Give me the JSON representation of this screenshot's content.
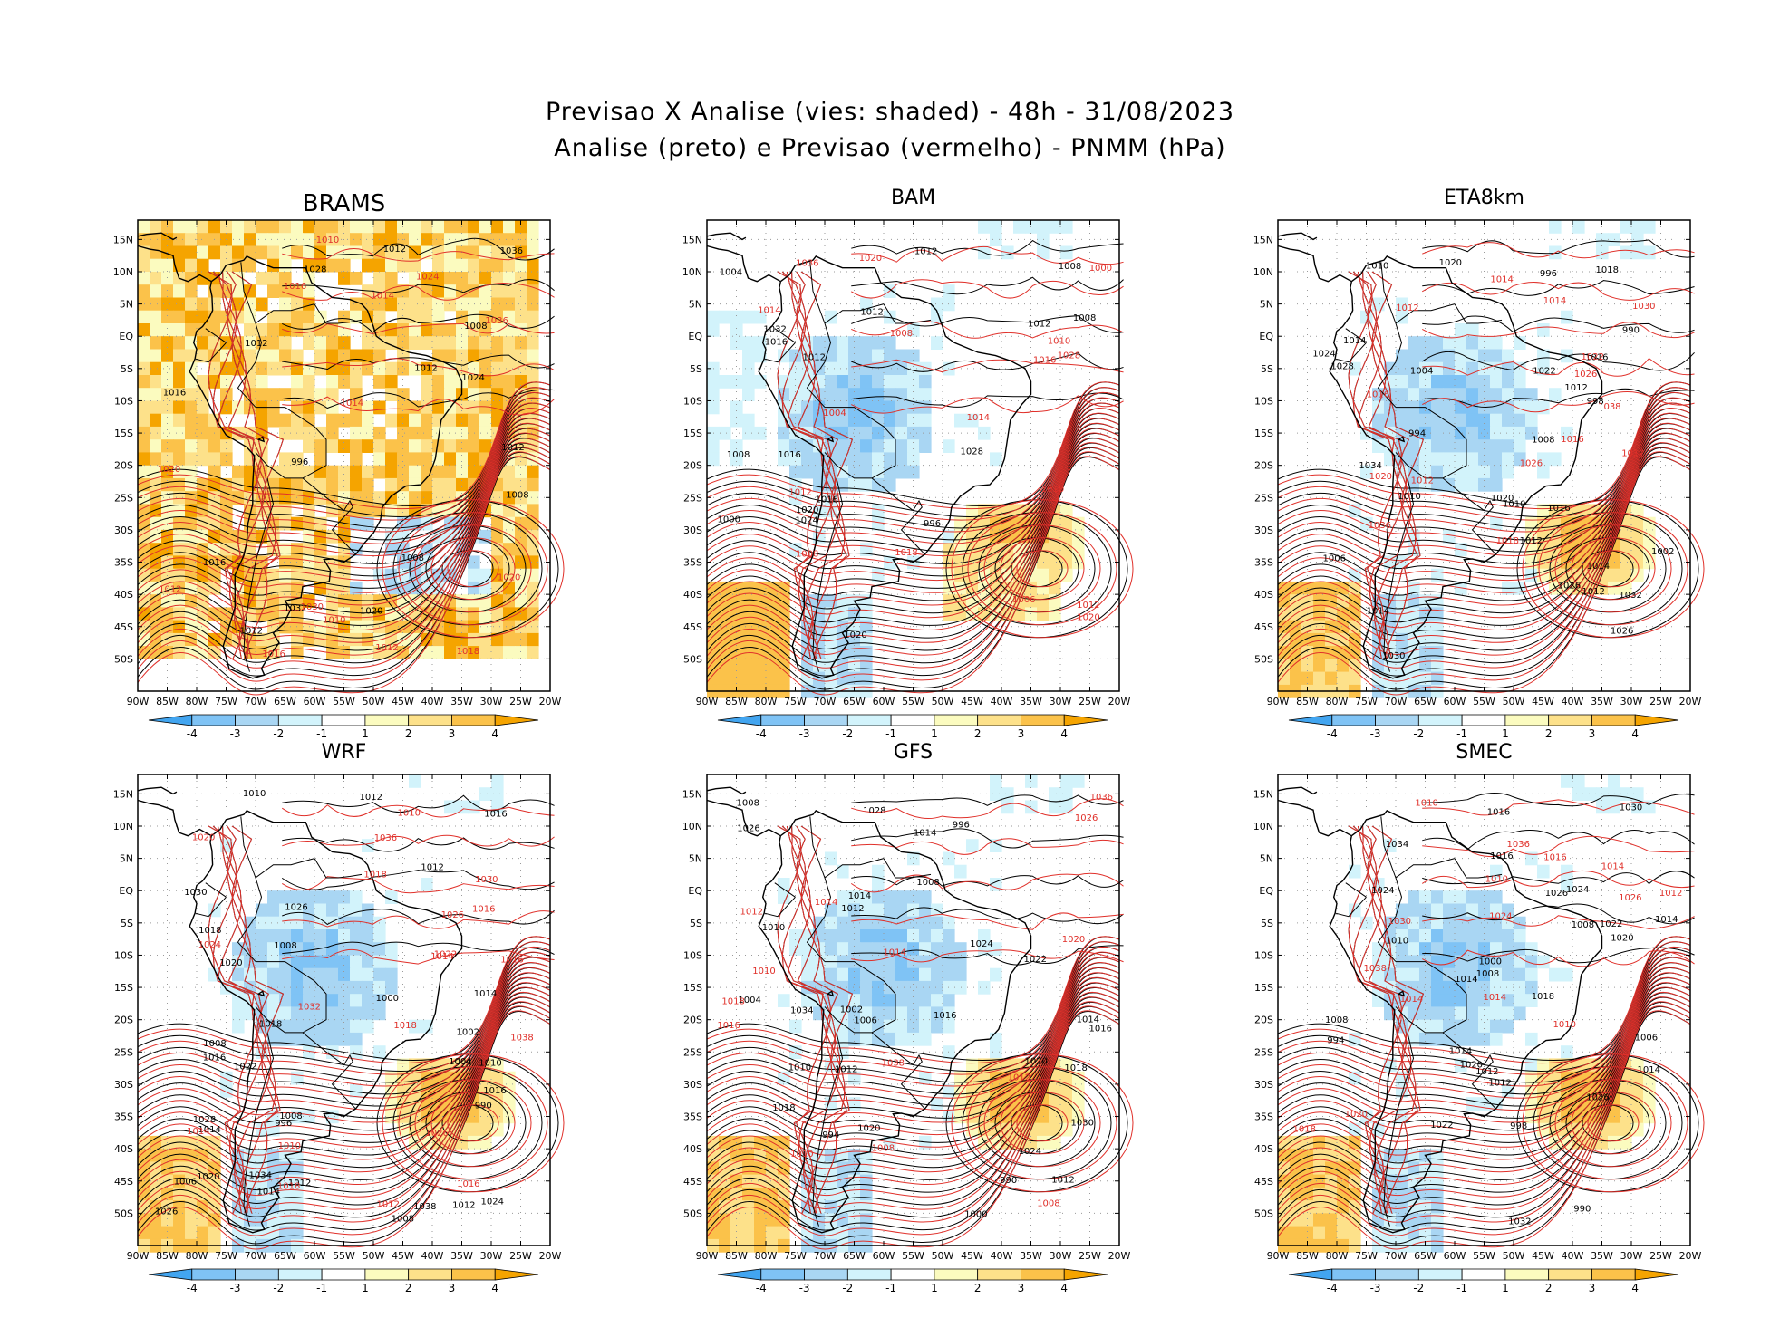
{
  "header": {
    "title_line1": "Previsao X Analise (vies: shaded) - 48h - 31/08/2023",
    "title_line2": "Analise (preto) e Previsao (vermelho) - PNMM (hPa)"
  },
  "axes": {
    "lat_labels": [
      "15N",
      "10N",
      "5N",
      "EQ",
      "5S",
      "10S",
      "15S",
      "20S",
      "25S",
      "30S",
      "35S",
      "40S",
      "45S",
      "50S"
    ],
    "lon_labels": [
      "90W",
      "85W",
      "80W",
      "75W",
      "70W",
      "65W",
      "60W",
      "55W",
      "50W",
      "45W",
      "40W",
      "35W",
      "30W",
      "25W",
      "20W"
    ]
  },
  "colorbar": {
    "labels": [
      "-4",
      "-3",
      "-2",
      "-1",
      "1",
      "2",
      "3",
      "4"
    ],
    "colors": [
      "#42a5f0",
      "#7fc3f5",
      "#a9d6f3",
      "#d2f3fb",
      "#ffffff",
      "#fbfbbf",
      "#fde18a",
      "#fbc24a",
      "#f5a400"
    ]
  },
  "colors": {
    "analysis_contour": "#000000",
    "forecast_contour": "#e0302a",
    "coast": "#000000"
  },
  "panels": [
    {
      "name": "BRAMS",
      "bias": "warm",
      "labels_black": [
        "1012",
        "1008",
        "1012",
        "1008",
        "1012",
        "1008",
        "1012",
        "1012",
        "1016",
        "1016",
        "1020",
        "1024",
        "1028",
        "1032",
        "1036",
        "996"
      ],
      "labels_red": [
        "1016",
        "1014",
        "1010",
        "1012",
        "1010",
        "1018",
        "1014",
        "1012",
        "1020",
        "1024",
        "1016",
        "1020",
        "1030",
        "1036"
      ]
    },
    {
      "name": "BAM",
      "bias": "mixed",
      "labels_black": [
        "1008",
        "1012",
        "1016",
        "1012",
        "1008",
        "1016",
        "1020",
        "1024",
        "1028",
        "1032",
        "1016",
        "1012",
        "1008",
        "1004",
        "1000",
        "996",
        "1020",
        "1012"
      ],
      "labels_red": [
        "1014",
        "1014",
        "1010",
        "1012",
        "1008",
        "1006",
        "1010",
        "1012",
        "1016",
        "1020",
        "1018",
        "1020",
        "1028",
        "1036",
        "1008",
        "1004",
        "1000"
      ]
    },
    {
      "name": "ETA8km",
      "bias": "cool",
      "labels_black": [
        "1008",
        "1012",
        "1012",
        "1014",
        "1014",
        "1010",
        "1012",
        "1016",
        "1014",
        "1010",
        "1016",
        "1018",
        "1020",
        "1022",
        "1024",
        "1026",
        "1028",
        "1030",
        "1032",
        "1034",
        "1010",
        "1006",
        "1004",
        "1002",
        "998",
        "996",
        "994",
        "990",
        "1020",
        "1026"
      ],
      "labels_red": [
        "1012",
        "1012",
        "1014",
        "1016",
        "1012",
        "1014",
        "1016",
        "1018",
        "1020",
        "1022",
        "1026",
        "1030",
        "1036",
        "1038",
        "1026"
      ]
    },
    {
      "name": "WRF",
      "bias": "cool",
      "labels_black": [
        "1008",
        "1008",
        "1006",
        "1016",
        "1012",
        "1010",
        "1014",
        "1012",
        "1008",
        "1014",
        "1010",
        "1012",
        "1016",
        "1018",
        "1020",
        "1024",
        "1026",
        "1028",
        "1030",
        "1034",
        "1038",
        "1022",
        "1020",
        "1016",
        "1012",
        "1008",
        "1004",
        "1002",
        "1000",
        "996",
        "990",
        "1026",
        "1014",
        "1018"
      ],
      "labels_red": [
        "1010",
        "1010",
        "1016",
        "1014",
        "1014",
        "1012",
        "1016",
        "1018",
        "1018",
        "1020",
        "1022",
        "1024",
        "1026",
        "1030",
        "1032",
        "1036",
        "1038",
        "1016",
        "1018",
        "1026"
      ]
    },
    {
      "name": "GFS",
      "bias": "cool",
      "labels_black": [
        "1008",
        "1012",
        "1014",
        "1016",
        "1012",
        "1010",
        "1008",
        "1014",
        "1018",
        "1020",
        "1022",
        "1024",
        "1028",
        "1030",
        "1034",
        "1026",
        "1018",
        "1016",
        "1012",
        "1014",
        "1010",
        "1006",
        "1004",
        "1002",
        "1000",
        "996",
        "994",
        "990",
        "1024",
        "1020"
      ],
      "labels_red": [
        "1008",
        "1014",
        "1010",
        "1012",
        "1016",
        "1018",
        "1020",
        "1026",
        "1036",
        "1038",
        "1014",
        "1012",
        "1010",
        "1008"
      ]
    },
    {
      "name": "SMEC",
      "bias": "cool",
      "labels_black": [
        "1008",
        "1014",
        "1014",
        "1010",
        "1008",
        "1012",
        "1014",
        "1016",
        "1018",
        "1020",
        "1022",
        "1026",
        "1030",
        "1032",
        "1034",
        "1024",
        "1022",
        "1020",
        "1016",
        "1014",
        "1012",
        "1008",
        "1006",
        "1000",
        "998",
        "994",
        "990",
        "1026",
        "1024"
      ],
      "labels_red": [
        "1014",
        "1014",
        "1014",
        "1010",
        "1012",
        "1010",
        "1016",
        "1018",
        "1020",
        "1026",
        "1030",
        "1036",
        "1038",
        "1024",
        "1010"
      ]
    }
  ]
}
